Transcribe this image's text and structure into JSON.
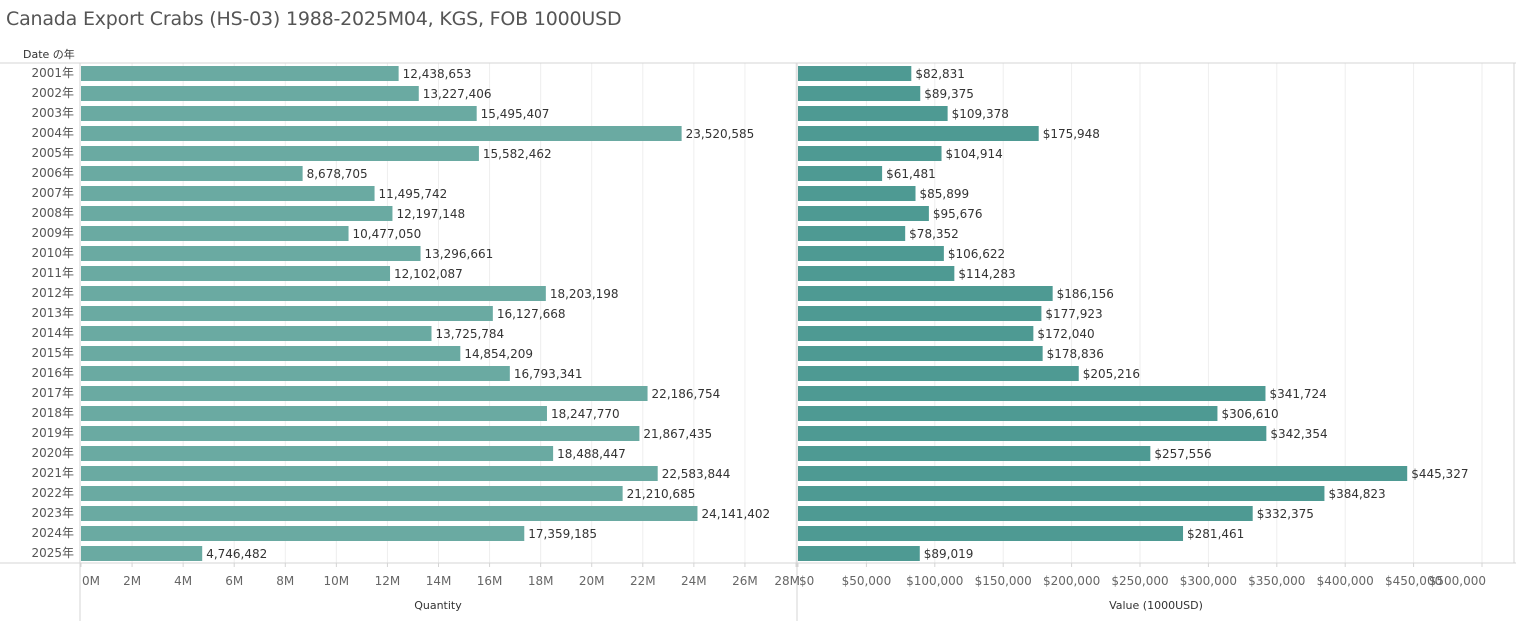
{
  "title": "Canada Export Crabs (HS-03) 1988-2025M04, KGS, FOB 1000USD",
  "row_header": "Date の年",
  "colors": {
    "quantity_bar": "#6aaaa2",
    "value_bar": "#4e9a93",
    "gridline": "#eeeeee",
    "axis_line": "#d4d4d4"
  },
  "chart_data": [
    {
      "type": "bar",
      "orientation": "horizontal",
      "title": "",
      "xlabel": "Quantity",
      "ylabel": "Date の年",
      "categories": [
        "2001年",
        "2002年",
        "2003年",
        "2004年",
        "2005年",
        "2006年",
        "2007年",
        "2008年",
        "2009年",
        "2010年",
        "2011年",
        "2012年",
        "2013年",
        "2014年",
        "2015年",
        "2016年",
        "2017年",
        "2018年",
        "2019年",
        "2020年",
        "2021年",
        "2022年",
        "2023年",
        "2024年",
        "2025年"
      ],
      "values": [
        12438653,
        13227406,
        15495407,
        23520585,
        15582462,
        8678705,
        11495742,
        12197148,
        10477050,
        13296661,
        12102087,
        18203198,
        16127668,
        13725784,
        14854209,
        16793341,
        22186754,
        18247770,
        21867435,
        18488447,
        22583844,
        21210685,
        24141402,
        17359185,
        4746482
      ],
      "data_labels": [
        "12,438,653",
        "13,227,406",
        "15,495,407",
        "23,520,585",
        "15,582,462",
        "8,678,705",
        "11,495,742",
        "12,197,148",
        "10,477,050",
        "13,296,661",
        "12,102,087",
        "18,203,198",
        "16,127,668",
        "13,725,784",
        "14,854,209",
        "16,793,341",
        "22,186,754",
        "18,247,770",
        "21,867,435",
        "18,488,447",
        "22,583,844",
        "21,210,685",
        "24,141,402",
        "17,359,185",
        "4,746,482"
      ],
      "xlim": [
        0,
        28000000
      ],
      "ticks": [
        0,
        2000000,
        4000000,
        6000000,
        8000000,
        10000000,
        12000000,
        14000000,
        16000000,
        18000000,
        20000000,
        22000000,
        24000000,
        26000000,
        28000000
      ],
      "tick_labels": [
        "0M",
        "2M",
        "4M",
        "6M",
        "8M",
        "10M",
        "12M",
        "14M",
        "16M",
        "18M",
        "20M",
        "22M",
        "24M",
        "26M",
        "28M"
      ],
      "grid": true
    },
    {
      "type": "bar",
      "orientation": "horizontal",
      "title": "",
      "xlabel": "Value (1000USD)",
      "ylabel": "",
      "categories": [
        "2001年",
        "2002年",
        "2003年",
        "2004年",
        "2005年",
        "2006年",
        "2007年",
        "2008年",
        "2009年",
        "2010年",
        "2011年",
        "2012年",
        "2013年",
        "2014年",
        "2015年",
        "2016年",
        "2017年",
        "2018年",
        "2019年",
        "2020年",
        "2021年",
        "2022年",
        "2023年",
        "2024年",
        "2025年"
      ],
      "values": [
        82831,
        89375,
        109378,
        175948,
        104914,
        61481,
        85899,
        95676,
        78352,
        106622,
        114283,
        186156,
        177923,
        172040,
        178836,
        205216,
        341724,
        306610,
        342354,
        257556,
        445327,
        384823,
        332375,
        281461,
        89019
      ],
      "data_labels": [
        "$82,831",
        "$89,375",
        "$109,378",
        "$175,948",
        "$104,914",
        "$61,481",
        "$85,899",
        "$95,676",
        "$78,352",
        "$106,622",
        "$114,283",
        "$186,156",
        "$177,923",
        "$172,040",
        "$178,836",
        "$205,216",
        "$341,724",
        "$306,610",
        "$342,354",
        "$257,556",
        "$445,327",
        "$384,823",
        "$332,375",
        "$281,461",
        "$89,019"
      ],
      "xlim": [
        0,
        500000
      ],
      "ticks": [
        0,
        50000,
        100000,
        150000,
        200000,
        250000,
        300000,
        350000,
        400000,
        450000,
        500000
      ],
      "tick_labels": [
        "$0",
        "$50,000",
        "$100,000",
        "$150,000",
        "$200,000",
        "$250,000",
        "$300,000",
        "$350,000",
        "$400,000",
        "$450,000",
        "$500,000"
      ],
      "grid": true
    }
  ]
}
